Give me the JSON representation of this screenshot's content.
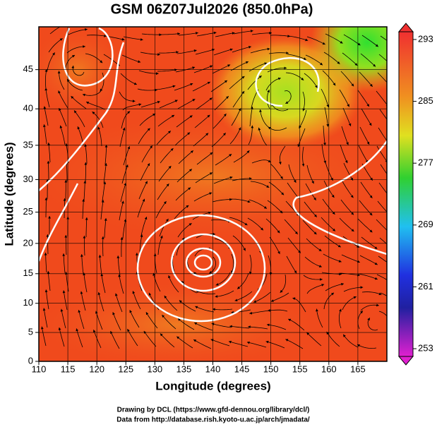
{
  "map": {
    "title": "GSM 06Z07Jul2026 (850.0hPa)",
    "xlabel": "Longitude (degrees)",
    "ylabel": "Latitude  (degrees)",
    "xlim": [
      110,
      170
    ],
    "ylim": [
      0,
      50
    ],
    "xticks": [
      110,
      115,
      120,
      125,
      130,
      135,
      140,
      145,
      150,
      155,
      160,
      165
    ],
    "yticks": [
      0,
      5,
      10,
      15,
      20,
      25,
      30,
      35,
      40,
      45
    ]
  },
  "colorbar": {
    "lim": [
      252,
      294
    ],
    "ticks": [
      293,
      285,
      277,
      269,
      261,
      253
    ]
  },
  "footer": [
    "Drawing by DCL (https://www.gfd-dennou.org/library/dcl/)",
    "Data from http://database.rish.kyoto-u.ac.jp/arch/jmadata/"
  ]
}
